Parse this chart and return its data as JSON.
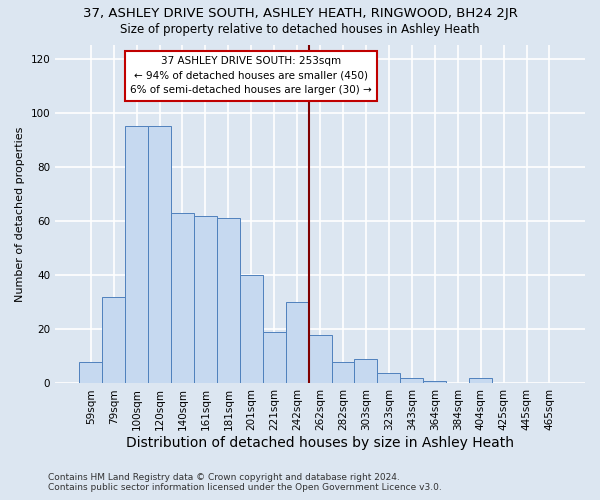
{
  "title": "37, ASHLEY DRIVE SOUTH, ASHLEY HEATH, RINGWOOD, BH24 2JR",
  "subtitle": "Size of property relative to detached houses in Ashley Heath",
  "xlabel": "Distribution of detached houses by size in Ashley Heath",
  "ylabel": "Number of detached properties",
  "footer_line1": "Contains HM Land Registry data © Crown copyright and database right 2024.",
  "footer_line2": "Contains public sector information licensed under the Open Government Licence v3.0.",
  "bar_labels": [
    "59sqm",
    "79sqm",
    "100sqm",
    "120sqm",
    "140sqm",
    "161sqm",
    "181sqm",
    "201sqm",
    "221sqm",
    "242sqm",
    "262sqm",
    "282sqm",
    "303sqm",
    "323sqm",
    "343sqm",
    "364sqm",
    "384sqm",
    "404sqm",
    "425sqm",
    "445sqm",
    "465sqm"
  ],
  "bar_values": [
    8,
    32,
    95,
    95,
    63,
    62,
    61,
    40,
    19,
    30,
    18,
    8,
    9,
    4,
    2,
    1,
    0,
    2,
    0,
    0,
    0
  ],
  "bar_color": "#c6d9f0",
  "bar_edge_color": "#4f81bd",
  "background_color": "#dce6f1",
  "plot_bg_color": "#dce6f1",
  "grid_color": "#ffffff",
  "vline_x": 10.0,
  "vline_color": "#7f0000",
  "annotation_title": "37 ASHLEY DRIVE SOUTH: 253sqm",
  "annotation_line1": "← 94% of detached houses are smaller (450)",
  "annotation_line2": "6% of semi-detached houses are larger (30) →",
  "annotation_box_edgecolor": "#c00000",
  "annotation_box_facecolor": "#ffffff",
  "ylim": [
    0,
    125
  ],
  "yticks": [
    0,
    20,
    40,
    60,
    80,
    100,
    120
  ],
  "title_fontsize": 9.5,
  "subtitle_fontsize": 8.5,
  "xlabel_fontsize": 10,
  "ylabel_fontsize": 8,
  "tick_fontsize": 7.5,
  "footer_fontsize": 6.5,
  "annotation_fontsize": 7.5
}
